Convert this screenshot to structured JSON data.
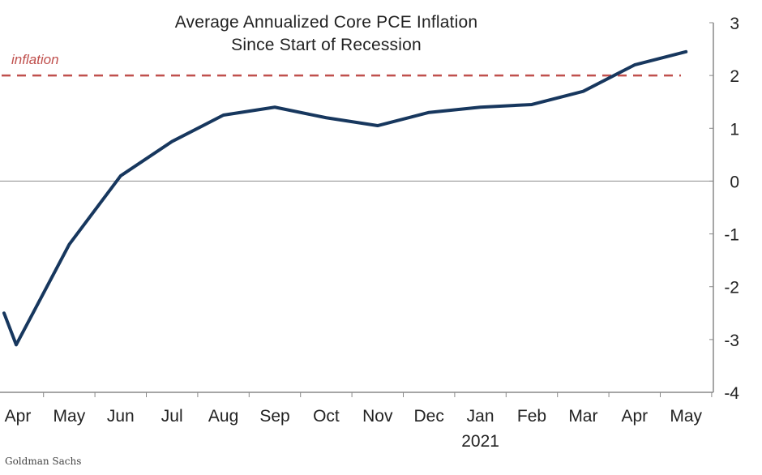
{
  "chart_data": {
    "type": "line",
    "title": "Average  Annualized  Core  PCE Inflation",
    "subtitle": "Since Start of Recession",
    "categories": [
      "Apr",
      "May",
      "Jun",
      "Jul",
      "Aug",
      "Sep",
      "Oct",
      "Nov",
      "Dec",
      "Jan",
      "Feb",
      "Mar",
      "Apr",
      "May"
    ],
    "year_label": "2021",
    "year_label_under": "Jan",
    "series": [
      {
        "name": "Average annualized core PCE inflation",
        "color": "#17375e",
        "lead_in_value": -2.5,
        "values": [
          -3.1,
          -1.2,
          0.1,
          0.75,
          1.25,
          1.4,
          1.2,
          1.05,
          1.3,
          1.4,
          1.45,
          1.7,
          2.2,
          2.45
        ]
      }
    ],
    "reference_lines": [
      {
        "value": 2,
        "label": "inflation",
        "style": "dashed",
        "color": "#c0504d"
      },
      {
        "value": 0,
        "style": "solid",
        "color": "#999999"
      }
    ],
    "ylim": [
      -4,
      3
    ],
    "yticks": [
      3,
      2,
      1,
      0,
      -1,
      -2,
      -3,
      -4
    ],
    "yaxis_position": "right",
    "grid": false,
    "source": "Goldman Sachs"
  }
}
